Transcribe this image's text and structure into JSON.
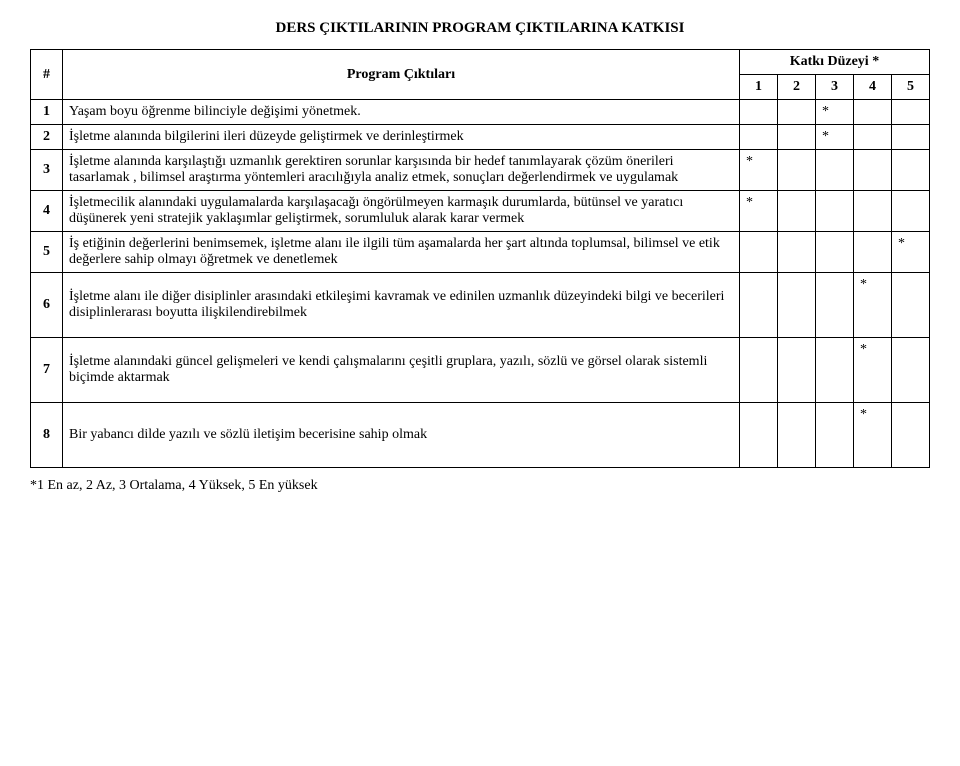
{
  "title": "DERS ÇIKTILARININ PROGRAM ÇIKTILARINA KATKISI",
  "headers": {
    "hash": "#",
    "outcome": "Program Çıktıları",
    "katki": "Katkı Düzeyi *",
    "levels": [
      "1",
      "2",
      "3",
      "4",
      "5"
    ]
  },
  "rows": [
    {
      "num": "1",
      "text": "Yaşam boyu öğrenme bilinciyle değişimi yönetmek.",
      "marks": [
        "",
        "",
        "*",
        "",
        ""
      ]
    },
    {
      "num": "2",
      "text": "İşletme alanında bilgilerini ileri düzeyde geliştirmek ve derinleştirmek",
      "marks": [
        "",
        "",
        "*",
        "",
        ""
      ]
    },
    {
      "num": "3",
      "text": "İşletme alanında karşılaştığı uzmanlık gerektiren sorunlar karşısında bir hedef tanımlayarak çözüm önerileri tasarlamak , bilimsel araştırma yöntemleri aracılığıyla analiz etmek, sonuçları değerlendirmek ve uygulamak",
      "marks": [
        "*",
        "",
        "",
        "",
        ""
      ]
    },
    {
      "num": "4",
      "text": "İşletmecilik alanındaki uygulamalarda karşılaşacağı öngörülmeyen karmaşık durumlarda, bütünsel ve yaratıcı düşünerek yeni stratejik yaklaşımlar geliştirmek, sorumluluk alarak karar vermek",
      "marks": [
        "*",
        "",
        "",
        "",
        ""
      ]
    },
    {
      "num": "5",
      "text": "İş etiğinin değerlerini benimsemek, işletme alanı ile ilgili tüm aşamalarda her şart altında toplumsal, bilimsel ve etik değerlere sahip olmayı öğretmek ve denetlemek",
      "marks": [
        "",
        "",
        "",
        "",
        "*"
      ]
    },
    {
      "num": "6",
      "text": "İşletme alanı ile diğer disiplinler arasındaki etkileşimi kavramak ve edinilen uzmanlık düzeyindeki  bilgi ve becerileri disiplinlerarası boyutta ilişkilendirebilmek",
      "marks": [
        "",
        "",
        "",
        "*",
        ""
      ]
    },
    {
      "num": "7",
      "text": "İşletme alanındaki güncel gelişmeleri ve kendi çalışmalarını çeşitli gruplara, yazılı, sözlü ve görsel olarak sistemli biçimde aktarmak",
      "marks": [
        "",
        "",
        "",
        "*",
        ""
      ]
    },
    {
      "num": "8",
      "text": "Bir yabancı dilde yazılı ve sözlü iletişim becerisine sahip olmak",
      "marks": [
        "",
        "",
        "",
        "*",
        ""
      ]
    }
  ],
  "footnote": "*1 En az, 2 Az, 3 Ortalama, 4 Yüksek, 5 En yüksek"
}
